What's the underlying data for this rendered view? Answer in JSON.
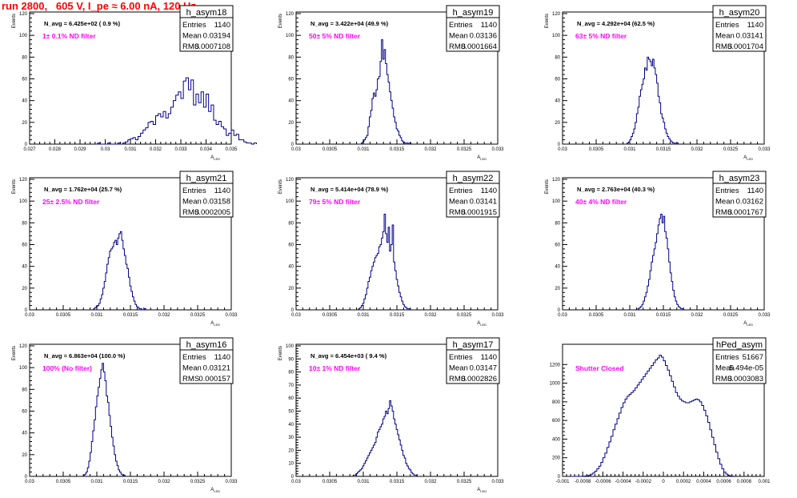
{
  "header": {
    "title": "run 2800,   605 V, I_pe ≈ 6.00 nA, 120 Hz"
  },
  "stat_labels": {
    "entries": "Entries",
    "mean": "Mean",
    "rms": "RMS"
  },
  "colors": {
    "histogram": "#00008b",
    "annotation": "#ff00ff",
    "title": "#ff0000",
    "axis": "#000000"
  },
  "chart_data": [
    {
      "type": "bar",
      "name": "h_asym18",
      "ylabel": "Events",
      "xlabel": "A_LED",
      "navg": "N_avg = 6.425e+02 ( 0.9 %)",
      "filter": "1± 0.1% ND filter",
      "stats": {
        "entries": "1140",
        "mean": "0.03194",
        "rms": "0.0007108"
      },
      "xlim": [
        0.027,
        0.035
      ],
      "ylim": [
        0,
        120
      ],
      "xticks": [
        "0.027",
        "0.028",
        "0.029",
        "0.03",
        "0.031",
        "0.032",
        "0.033",
        "0.034",
        "0.035"
      ],
      "yticks": [
        "0",
        "20",
        "40",
        "60",
        "80",
        "100",
        "120"
      ],
      "bins": {
        "x0": 0.0296,
        "width": 0.0001,
        "values": [
          0,
          1,
          0,
          0,
          0,
          1,
          0,
          0,
          0,
          1,
          0,
          1,
          2,
          4,
          5,
          6,
          4,
          7,
          10,
          13,
          15,
          20,
          21,
          18,
          26,
          28,
          25,
          30,
          24,
          28,
          34,
          40,
          45,
          48,
          42,
          58,
          61,
          50,
          59,
          36,
          46,
          38,
          48,
          34,
          46,
          30,
          36,
          22,
          18,
          21,
          16,
          14,
          8,
          10,
          13,
          8,
          9,
          4,
          4,
          2,
          1,
          1,
          0,
          1
        ]
      }
    },
    {
      "type": "bar",
      "name": "h_asym19",
      "ylabel": "Events",
      "xlabel": "A_LED",
      "navg": "N_avg = 3.422e+04 (49.9 %)",
      "filter": "50± 5% ND filter",
      "stats": {
        "entries": "1140",
        "mean": "0.03136",
        "rms": "0.0001664"
      },
      "xlim": [
        0.03,
        0.033
      ],
      "ylim": [
        0,
        120
      ],
      "xticks": [
        "0.03",
        "0.0305",
        "0.031",
        "0.0315",
        "0.032",
        "0.0325",
        "0.033"
      ],
      "yticks": [
        "0",
        "20",
        "40",
        "60",
        "80",
        "100",
        "120"
      ],
      "bins": {
        "x0": 0.03095,
        "width": 2e-05,
        "values": [
          0,
          1,
          2,
          4,
          6,
          8,
          16,
          25,
          31,
          42,
          47,
          44,
          50,
          60,
          62,
          76,
          96,
          78,
          87,
          74,
          64,
          57,
          48,
          40,
          33,
          25,
          20,
          14,
          12,
          8,
          6,
          3,
          2,
          1,
          1,
          1,
          0,
          1
        ]
      }
    },
    {
      "type": "bar",
      "name": "h_asym20",
      "ylabel": "Events",
      "xlabel": "A_LED",
      "navg": "N_avg = 4.292e+04 (62.5 %)",
      "filter": "63± 5% ND filter",
      "stats": {
        "entries": "1140",
        "mean": "0.03141",
        "rms": "0.0001704"
      },
      "xlim": [
        0.03,
        0.033
      ],
      "ylim": [
        0,
        120
      ],
      "xticks": [
        "0.03",
        "0.0305",
        "0.031",
        "0.0315",
        "0.032",
        "0.0325",
        "0.033"
      ],
      "yticks": [
        "0",
        "20",
        "40",
        "60",
        "80",
        "100",
        "120"
      ],
      "bins": {
        "x0": 0.03096,
        "width": 2e-05,
        "values": [
          1,
          2,
          4,
          7,
          10,
          14,
          20,
          28,
          34,
          44,
          50,
          55,
          60,
          70,
          68,
          80,
          78,
          76,
          72,
          78,
          70,
          64,
          56,
          44,
          38,
          28,
          24,
          20,
          14,
          10,
          7,
          5,
          3,
          2,
          1,
          1,
          0,
          1
        ]
      }
    },
    {
      "type": "bar",
      "name": "h_asym21",
      "ylabel": "Events",
      "xlabel": "A_LED",
      "navg": "N_avg = 1.762e+04 (25.7 %)",
      "filter": "25± 2.5% ND filter",
      "stats": {
        "entries": "1140",
        "mean": "0.03158",
        "rms": "0.0002005"
      },
      "xlim": [
        0.03,
        0.033
      ],
      "ylim": [
        0,
        120
      ],
      "xticks": [
        "0.03",
        "0.0305",
        "0.031",
        "0.0315",
        "0.032",
        "0.0325",
        "0.033"
      ],
      "yticks": [
        "0",
        "20",
        "40",
        "60",
        "80",
        "100",
        "120"
      ],
      "bins": {
        "x0": 0.03095,
        "width": 2e-05,
        "values": [
          1,
          2,
          3,
          4,
          6,
          10,
          14,
          20,
          26,
          34,
          42,
          48,
          54,
          56,
          58,
          62,
          64,
          60,
          66,
          70,
          72,
          64,
          56,
          50,
          42,
          38,
          30,
          22,
          17,
          12,
          8,
          5,
          3,
          2,
          1,
          1,
          0,
          0,
          1
        ]
      }
    },
    {
      "type": "bar",
      "name": "h_asym22",
      "ylabel": "Events",
      "xlabel": "A_LED",
      "navg": "N_avg = 5.414e+04 (78.9 %)",
      "filter": "79± 5% ND filter",
      "stats": {
        "entries": "1140",
        "mean": "0.03141",
        "rms": "0.0001915"
      },
      "xlim": [
        0.03,
        0.033
      ],
      "ylim": [
        0,
        120
      ],
      "xticks": [
        "0.03",
        "0.0305",
        "0.031",
        "0.0315",
        "0.032",
        "0.0325",
        "0.033"
      ],
      "yticks": [
        "0",
        "20",
        "40",
        "60",
        "80",
        "100",
        "120"
      ],
      "bins": {
        "x0": 0.03093,
        "width": 2e-05,
        "values": [
          1,
          2,
          4,
          6,
          10,
          14,
          20,
          26,
          30,
          36,
          40,
          44,
          48,
          50,
          52,
          58,
          60,
          66,
          72,
          88,
          70,
          62,
          76,
          54,
          60,
          78,
          44,
          36,
          28,
          22,
          16,
          12,
          8,
          5,
          3,
          2,
          1,
          1
        ]
      }
    },
    {
      "type": "bar",
      "name": "h_asym23",
      "ylabel": "Events",
      "xlabel": "A_LED",
      "navg": "N_avg = 2.763e+04 (40.3 %)",
      "filter": "40± 4% ND filter",
      "stats": {
        "entries": "1140",
        "mean": "0.03162",
        "rms": "0.0001767"
      },
      "xlim": [
        0.03,
        0.033
      ],
      "ylim": [
        0,
        120
      ],
      "xticks": [
        "0.03",
        "0.0305",
        "0.031",
        "0.0315",
        "0.032",
        "0.0325",
        "0.033"
      ],
      "yticks": [
        "0",
        "20",
        "40",
        "60",
        "80",
        "100",
        "120"
      ],
      "bins": {
        "x0": 0.03112,
        "width": 2e-05,
        "values": [
          1,
          2,
          3,
          5,
          8,
          12,
          16,
          22,
          28,
          36,
          44,
          50,
          56,
          62,
          70,
          78,
          84,
          88,
          80,
          86,
          72,
          66,
          56,
          44,
          34,
          26,
          18,
          12,
          8,
          5,
          3,
          2,
          1,
          1
        ]
      }
    },
    {
      "type": "bar",
      "name": "h_asym16",
      "ylabel": "Events",
      "xlabel": "A_LED",
      "navg": "N_avg = 6.863e+04 (100.0 %)",
      "filter": "100% (No filter)",
      "stats": {
        "entries": "1140",
        "mean": "0.03121",
        "rms": "0.000157"
      },
      "xlim": [
        0.03,
        0.033
      ],
      "ylim": [
        0,
        120
      ],
      "xticks": [
        "0.03",
        "0.0305",
        "0.031",
        "0.0315",
        "0.032",
        "0.0325",
        "0.033"
      ],
      "yticks": [
        "0",
        "20",
        "40",
        "60",
        "80",
        "100",
        "120"
      ],
      "bins": {
        "x0": 0.0308,
        "width": 2e-05,
        "values": [
          1,
          2,
          4,
          8,
          14,
          22,
          32,
          42,
          52,
          64,
          74,
          82,
          90,
          98,
          104,
          96,
          88,
          74,
          68,
          56,
          46,
          36,
          28,
          20,
          14,
          10,
          6,
          4,
          2,
          1,
          1
        ]
      }
    },
    {
      "type": "bar",
      "name": "h_asym17",
      "ylabel": "Events",
      "xlabel": "A_LED",
      "navg": "N_avg = 6.454e+03 ( 9.4 %)",
      "filter": "10± 1% ND filter",
      "stats": {
        "entries": "1140",
        "mean": "0.03147",
        "rms": "0.0002826"
      },
      "xlim": [
        0.03,
        0.033
      ],
      "ylim": [
        0,
        100
      ],
      "xticks": [
        "0.03",
        "0.0305",
        "0.031",
        "0.0315",
        "0.032",
        "0.0325",
        "0.033"
      ],
      "yticks": [
        "0",
        "10",
        "20",
        "30",
        "40",
        "50",
        "60",
        "70",
        "80",
        "90",
        "100"
      ],
      "bins": {
        "x0": 0.03085,
        "width": 2e-05,
        "values": [
          1,
          1,
          2,
          3,
          4,
          5,
          6,
          8,
          10,
          12,
          14,
          16,
          18,
          20,
          22,
          24,
          26,
          30,
          34,
          36,
          38,
          40,
          44,
          46,
          50,
          48,
          52,
          58,
          54,
          50,
          44,
          40,
          36,
          32,
          28,
          24,
          20,
          16,
          14,
          10,
          8,
          6,
          5,
          3,
          2,
          1,
          1
        ]
      }
    },
    {
      "type": "bar",
      "name": "hPed_asym",
      "ylabel": "",
      "xlabel": "",
      "navg": "",
      "filter": "Shutter Closed",
      "stats": {
        "entries": "51667",
        "mean": "5.494e-05",
        "rms": "0.0003083"
      },
      "xlim": [
        -0.001,
        0.001
      ],
      "ylim": [
        0,
        1400
      ],
      "xticks": [
        "-0.001",
        "-0.0008",
        "-0.0006",
        "-0.0004",
        "-0.0002",
        "0",
        "0.0002",
        "0.0004",
        "0.0006",
        "0.0008",
        "0.001"
      ],
      "yticks": [
        "0",
        "200",
        "400",
        "600",
        "800",
        "1000",
        "1200"
      ],
      "bins": {
        "x0": -0.00092,
        "width": 2e-05,
        "values": [
          0,
          0,
          0,
          0,
          0,
          1,
          2,
          4,
          8,
          14,
          24,
          36,
          56,
          80,
          110,
          150,
          200,
          250,
          310,
          370,
          430,
          500,
          560,
          620,
          680,
          740,
          790,
          830,
          860,
          880,
          900,
          920,
          950,
          980,
          1010,
          1040,
          1070,
          1100,
          1130,
          1160,
          1190,
          1220,
          1250,
          1270,
          1300,
          1280,
          1240,
          1190,
          1140,
          1080,
          1020,
          960,
          900,
          860,
          830,
          810,
          800,
          790,
          790,
          800,
          810,
          820,
          830,
          820,
          800,
          760,
          710,
          650,
          580,
          500,
          420,
          340,
          260,
          190,
          130,
          80,
          45,
          25,
          12,
          5,
          2,
          1
        ]
      }
    }
  ]
}
